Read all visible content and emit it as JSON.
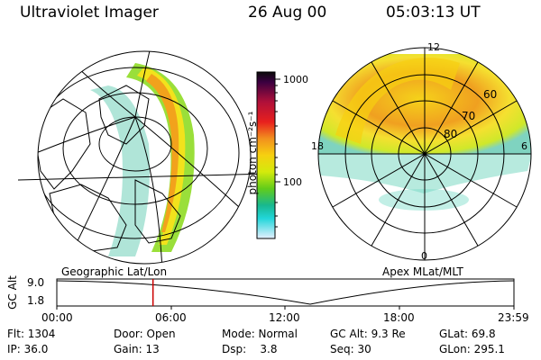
{
  "header": {
    "instrument": "Ultraviolet Imager",
    "date": "26 Aug 00",
    "time": "05:03:13 UT"
  },
  "colorbar": {
    "unit_label": "photon cm⁻²s⁻¹",
    "ticks": [
      "1000",
      "100"
    ],
    "colors": [
      "#0a0a0a",
      "#3a0040",
      "#b0103a",
      "#e8201e",
      "#f2901e",
      "#f6d010",
      "#d4ea0c",
      "#62cc1a",
      "#18b88e",
      "#22d6da",
      "#e6f0ff"
    ]
  },
  "polar_plot": {
    "mlt_labels": [
      "12",
      "18",
      "6",
      "0"
    ],
    "lat_labels": [
      "60",
      "70",
      "80"
    ]
  },
  "projection_labels": {
    "geographic": "Geographic Lat/Lon",
    "apex": "Apex MLat/MLT"
  },
  "timeline": {
    "axis_label": "GC Alt",
    "y_ticks": [
      "9.0",
      "1.8"
    ],
    "x_ticks": [
      "00:00",
      "06:00",
      "12:00",
      "18:00",
      "23:59"
    ],
    "current_hour": 5.05,
    "marker_color": "#cc0000"
  },
  "info_rows": [
    {
      "flt": "Flt: 1304",
      "door": "Door: Open",
      "mode": "Mode: Normal",
      "gcalt": "GC Alt: 9.3 Re",
      "glat": "GLat:  69.8"
    },
    {
      "ip": "IP: 36.0",
      "gain": "Gain: 13",
      "dsp": "Dsp:    3.8",
      "seq": "Seq: 30",
      "glon": "GLon: 295.1"
    }
  ]
}
